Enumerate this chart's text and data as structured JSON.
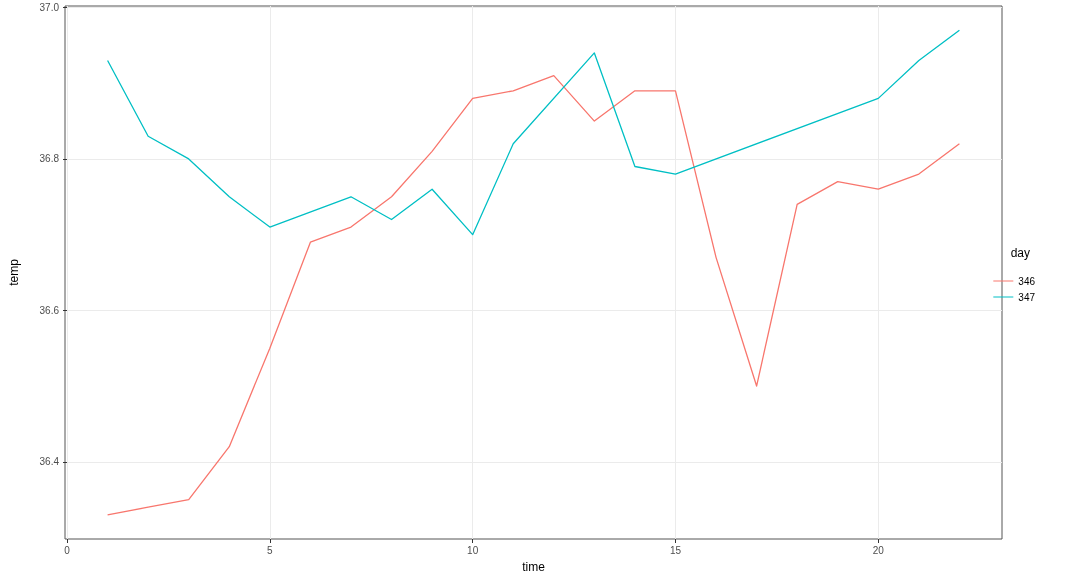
{
  "chart_data": {
    "type": "line",
    "xlabel": "time",
    "ylabel": "temp",
    "legend_title": "day",
    "xlim": [
      -0.05,
      23.05
    ],
    "xticks": [
      0,
      5,
      10,
      15,
      20
    ],
    "ylim": [
      36.298,
      37.002
    ],
    "yticks": [
      36.4,
      36.6,
      36.8,
      {
        "value": 37,
        "label": "37.0"
      }
    ],
    "grid": true,
    "legend": "right",
    "line_style": "solid",
    "marker": "none",
    "series": [
      {
        "name": "346",
        "color": "#f8766d",
        "x": [
          1,
          2,
          3,
          4,
          5,
          6,
          7,
          8,
          9,
          10,
          11,
          12,
          13,
          14,
          15,
          16,
          17,
          18,
          19,
          20,
          21,
          22
        ],
        "values": [
          36.33,
          36.34,
          36.35,
          36.42,
          36.55,
          36.69,
          36.71,
          36.75,
          36.81,
          36.88,
          36.89,
          36.91,
          36.85,
          36.89,
          36.89,
          36.67,
          36.5,
          36.74,
          36.77,
          36.76,
          36.78,
          36.82
        ]
      },
      {
        "name": "347",
        "color": "#00bfc4",
        "x": [
          1,
          2,
          3,
          4,
          5,
          7,
          8,
          9,
          10,
          11,
          13,
          14,
          15,
          20,
          21,
          22
        ],
        "values": [
          36.93,
          36.83,
          36.8,
          36.75,
          36.71,
          36.75,
          36.72,
          36.76,
          36.7,
          36.82,
          36.94,
          36.79,
          36.78,
          36.88,
          36.93,
          36.97
        ]
      }
    ]
  }
}
